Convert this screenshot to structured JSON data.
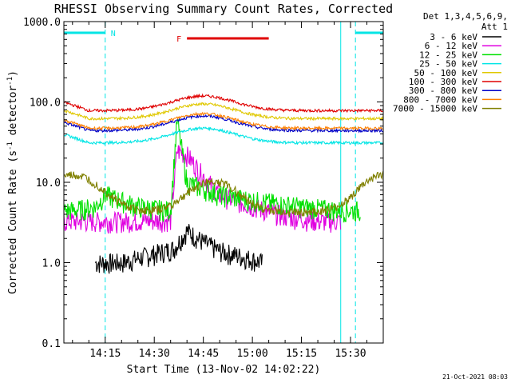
{
  "chart_data": {
    "type": "line",
    "title": "RHESSI Observing Summary Count Rates, Corrected",
    "xlabel": "Start Time (13-Nov-02 14:02:22)",
    "ylabel": "Corrected Count Rate (s",
    "ylabel_sup1": "-1",
    "ylabel_mid": " detector",
    "ylabel_sup2": "-1",
    "ylabel_end": ")",
    "y_scale": "log",
    "ylim": [
      0.1,
      1000
    ],
    "xlim": [
      "14:02:22",
      "15:40:00"
    ],
    "x_ticks": [
      "14:15",
      "14:30",
      "14:45",
      "15:00",
      "15:15",
      "15:30"
    ],
    "y_ticks": [
      "0.1",
      "1.0",
      "10.0",
      "100.0",
      "1000.0"
    ],
    "legend_header": [
      "Det 1,3,4,5,6,9,",
      "Att 1"
    ],
    "legend_placement": "right, outside plot",
    "timestamp": "21-Oct-2021 08:03",
    "flags": [
      {
        "letter": "N",
        "color": "#00e5e5",
        "segments": [
          [
            "14:02:22",
            "14:15:00"
          ],
          [
            "15:31:30",
            "15:40:00"
          ]
        ]
      },
      {
        "letter": "F",
        "color": "#e00000",
        "segments": [
          [
            "14:40:00",
            "15:05:00"
          ]
        ]
      }
    ],
    "night_boundaries": [
      "14:02:22",
      "14:15:00",
      "15:27:00",
      "15:31:30"
    ],
    "series": [
      {
        "name": "3 - 6 keV",
        "color": "#000000",
        "shape": "low",
        "level": 1.0,
        "points": [
          [
            "14:12",
            "1.0"
          ],
          [
            "14:13",
            "1.0"
          ],
          [
            "14:15",
            "1.0"
          ],
          [
            "14:20",
            "1.0"
          ],
          [
            "14:36",
            "1.5"
          ],
          [
            "14:40",
            "2.5"
          ],
          [
            "14:45",
            "1.8"
          ],
          [
            "14:50",
            "1.4"
          ],
          [
            "15:00",
            "1.1"
          ],
          [
            "15:03",
            "1.0"
          ]
        ]
      },
      {
        "name": "6 - 12 keV",
        "color": "#e000e0",
        "shape": "flare",
        "level": 3.3,
        "points": [
          [
            "14:05",
            "3.3"
          ],
          [
            "14:20",
            "3.3"
          ],
          [
            "14:35",
            "3.4"
          ],
          [
            "14:37",
            "25"
          ],
          [
            "14:40",
            "22"
          ],
          [
            "14:45",
            "12"
          ],
          [
            "14:50",
            "7"
          ],
          [
            "15:00",
            "5"
          ],
          [
            "15:10",
            "3.8"
          ],
          [
            "15:20",
            "3.3"
          ],
          [
            "15:27",
            "3.3"
          ]
        ]
      },
      {
        "name": "12 - 25 keV",
        "color": "#00e000",
        "shape": "flare",
        "level": 4.5,
        "points": [
          [
            "14:05",
            "4.5"
          ],
          [
            "14:12",
            "5"
          ],
          [
            "14:15",
            "7"
          ],
          [
            "14:25",
            "5"
          ],
          [
            "14:35",
            "4.5"
          ],
          [
            "14:37",
            "60"
          ],
          [
            "14:40",
            "10"
          ],
          [
            "14:50",
            "7"
          ],
          [
            "15:00",
            "6"
          ],
          [
            "15:15",
            "5"
          ],
          [
            "15:27",
            "4.5"
          ],
          [
            "15:33",
            "4.5"
          ]
        ]
      },
      {
        "name": "25 - 50 keV",
        "color": "#00e5e5",
        "shape": "orbit",
        "level": 31
      },
      {
        "name": "50 - 100 keV",
        "color": "#e0c800",
        "shape": "orbit",
        "level": 62
      },
      {
        "name": "100 - 300 keV",
        "color": "#e00000",
        "shape": "orbit",
        "level": 78
      },
      {
        "name": "300 - 800 keV",
        "color": "#0000c8",
        "shape": "orbit",
        "level": 44
      },
      {
        "name": "800 - 7000 keV",
        "color": "#ff8000",
        "shape": "orbit",
        "level": 47
      },
      {
        "name": "7000 - 15000 keV",
        "color": "#808000",
        "shape": "orbit",
        "level": 8
      }
    ]
  }
}
